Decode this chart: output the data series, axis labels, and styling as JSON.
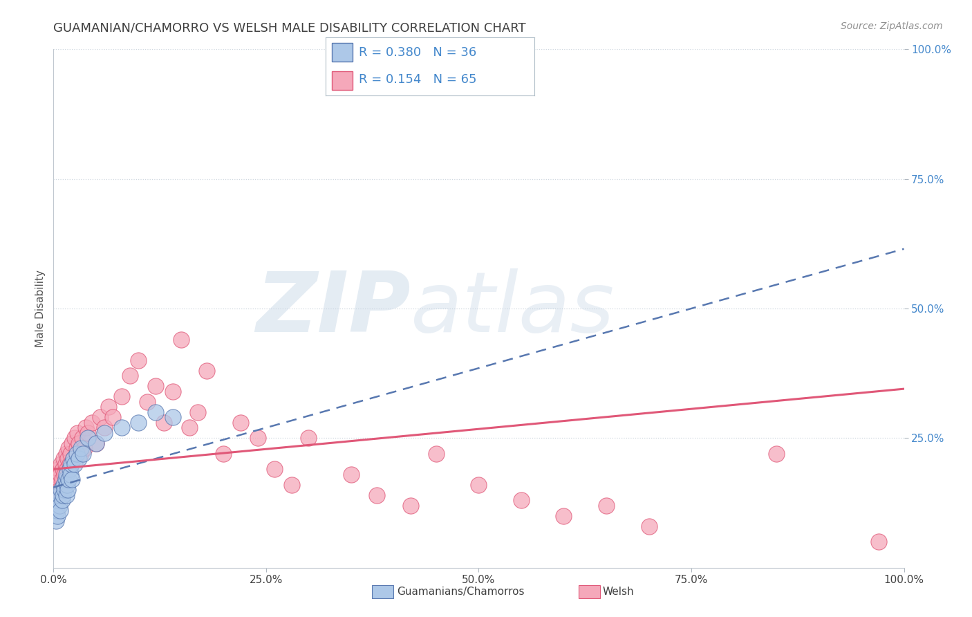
{
  "title": "GUAMANIAN/CHAMORRO VS WELSH MALE DISABILITY CORRELATION CHART",
  "source": "Source: ZipAtlas.com",
  "ylabel": "Male Disability",
  "xlabel": "",
  "xlim": [
    0.0,
    1.0
  ],
  "ylim": [
    0.0,
    1.0
  ],
  "xticks": [
    0.0,
    0.25,
    0.5,
    0.75,
    1.0
  ],
  "yticks": [
    0.25,
    0.5,
    0.75,
    1.0
  ],
  "xtick_labels": [
    "0.0%",
    "25.0%",
    "50.0%",
    "75.0%",
    "100.0%"
  ],
  "ytick_labels": [
    "25.0%",
    "50.0%",
    "75.0%",
    "100.0%"
  ],
  "legend_r1": "R = 0.380",
  "legend_n1": "N = 36",
  "legend_r2": "R = 0.154",
  "legend_n2": "N = 65",
  "color_blue": "#adc8e8",
  "color_pink": "#f5a8ba",
  "color_blue_line": "#5878b0",
  "color_pink_line": "#e05878",
  "color_title": "#404040",
  "color_legend_text": "#4488cc",
  "color_yticklabel": "#4488cc",
  "watermark_zip": "ZIP",
  "watermark_atlas": "atlas",
  "background_color": "#ffffff",
  "grid_color": "#d0d8e0",
  "blue_x": [
    0.002,
    0.003,
    0.004,
    0.005,
    0.005,
    0.006,
    0.007,
    0.008,
    0.009,
    0.01,
    0.011,
    0.012,
    0.013,
    0.014,
    0.015,
    0.015,
    0.016,
    0.017,
    0.018,
    0.019,
    0.02,
    0.021,
    0.022,
    0.023,
    0.025,
    0.027,
    0.03,
    0.032,
    0.035,
    0.04,
    0.05,
    0.06,
    0.08,
    0.1,
    0.12,
    0.14
  ],
  "blue_y": [
    0.12,
    0.09,
    0.11,
    0.13,
    0.1,
    0.14,
    0.12,
    0.11,
    0.15,
    0.13,
    0.14,
    0.16,
    0.15,
    0.17,
    0.14,
    0.18,
    0.16,
    0.15,
    0.17,
    0.19,
    0.18,
    0.2,
    0.17,
    0.21,
    0.2,
    0.22,
    0.21,
    0.23,
    0.22,
    0.25,
    0.24,
    0.26,
    0.27,
    0.28,
    0.3,
    0.29
  ],
  "pink_x": [
    0.001,
    0.002,
    0.003,
    0.004,
    0.005,
    0.006,
    0.007,
    0.008,
    0.009,
    0.01,
    0.011,
    0.012,
    0.013,
    0.014,
    0.015,
    0.016,
    0.017,
    0.018,
    0.019,
    0.02,
    0.022,
    0.023,
    0.025,
    0.027,
    0.028,
    0.03,
    0.032,
    0.034,
    0.036,
    0.038,
    0.04,
    0.045,
    0.05,
    0.055,
    0.06,
    0.065,
    0.07,
    0.08,
    0.09,
    0.1,
    0.11,
    0.12,
    0.13,
    0.14,
    0.15,
    0.16,
    0.17,
    0.18,
    0.2,
    0.22,
    0.24,
    0.26,
    0.28,
    0.3,
    0.35,
    0.38,
    0.42,
    0.45,
    0.5,
    0.55,
    0.6,
    0.65,
    0.7,
    0.85,
    0.97
  ],
  "pink_y": [
    0.15,
    0.17,
    0.14,
    0.18,
    0.16,
    0.19,
    0.15,
    0.18,
    0.2,
    0.17,
    0.19,
    0.21,
    0.18,
    0.2,
    0.22,
    0.19,
    0.21,
    0.23,
    0.2,
    0.22,
    0.24,
    0.21,
    0.25,
    0.23,
    0.26,
    0.24,
    0.22,
    0.25,
    0.23,
    0.27,
    0.26,
    0.28,
    0.24,
    0.29,
    0.27,
    0.31,
    0.29,
    0.33,
    0.37,
    0.4,
    0.32,
    0.35,
    0.28,
    0.34,
    0.44,
    0.27,
    0.3,
    0.38,
    0.22,
    0.28,
    0.25,
    0.19,
    0.16,
    0.25,
    0.18,
    0.14,
    0.12,
    0.22,
    0.16,
    0.13,
    0.1,
    0.12,
    0.08,
    0.22,
    0.05
  ],
  "blue_slope": 0.46,
  "blue_intercept": 0.155,
  "pink_slope": 0.155,
  "pink_intercept": 0.19
}
